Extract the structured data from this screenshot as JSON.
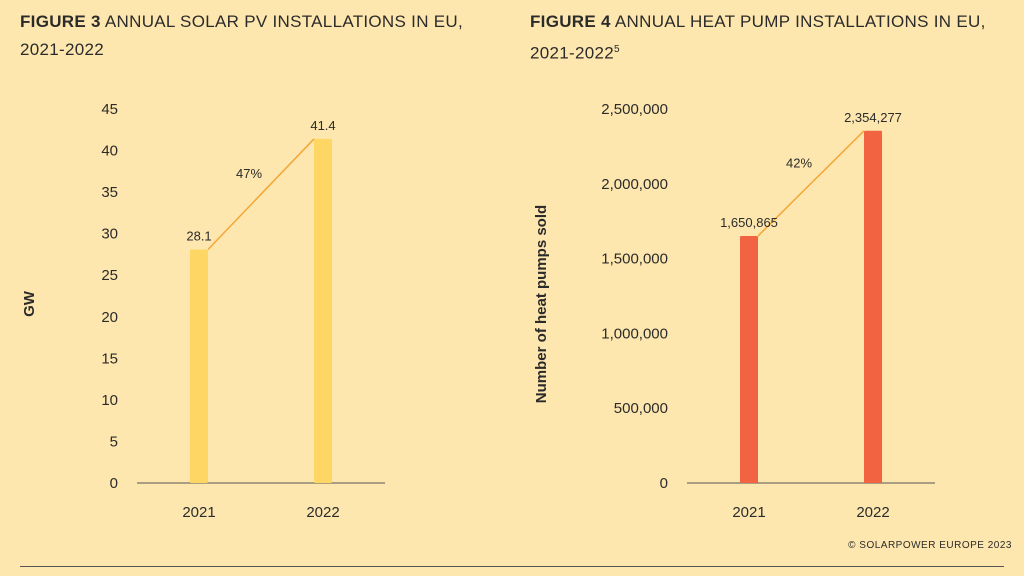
{
  "figures": [
    {
      "lead": "FIGURE 3",
      "rest_line1": " ANNUAL SOLAR PV INSTALLATIONS IN EU,",
      "rest_line2": "2021-2022",
      "footnote": ""
    },
    {
      "lead": "FIGURE 4",
      "rest_line1": " ANNUAL HEAT PUMP INSTALLATIONS IN EU,",
      "rest_line2": "2021-2022",
      "footnote": "5"
    }
  ],
  "chart_data": [
    {
      "type": "bar",
      "categories": [
        "2021",
        "2022"
      ],
      "values": [
        28.1,
        41.4
      ],
      "value_labels": [
        "28.1",
        "41.4"
      ],
      "growth_label": "47%",
      "ylabel": "GW",
      "ylim": [
        0,
        45
      ],
      "yticks": [
        "0",
        "5",
        "10",
        "15",
        "20",
        "25",
        "30",
        "35",
        "40",
        "45"
      ],
      "bar_color": "#fdd664",
      "line_color": "#f4a637"
    },
    {
      "type": "bar",
      "categories": [
        "2021",
        "2022"
      ],
      "values": [
        1650865,
        2354277
      ],
      "value_labels": [
        "1,650,865",
        "2,354,277"
      ],
      "growth_label": "42%",
      "ylabel": "Number of heat pumps sold",
      "ylim": [
        0,
        2500000
      ],
      "yticks": [
        "0",
        "500,000",
        "1,000,000",
        "1,500,000",
        "2,000,000",
        "2,500,000"
      ],
      "bar_color": "#f26441",
      "line_color": "#f4a637"
    }
  ],
  "copyright": "© SOLARPOWER EUROPE 2023"
}
